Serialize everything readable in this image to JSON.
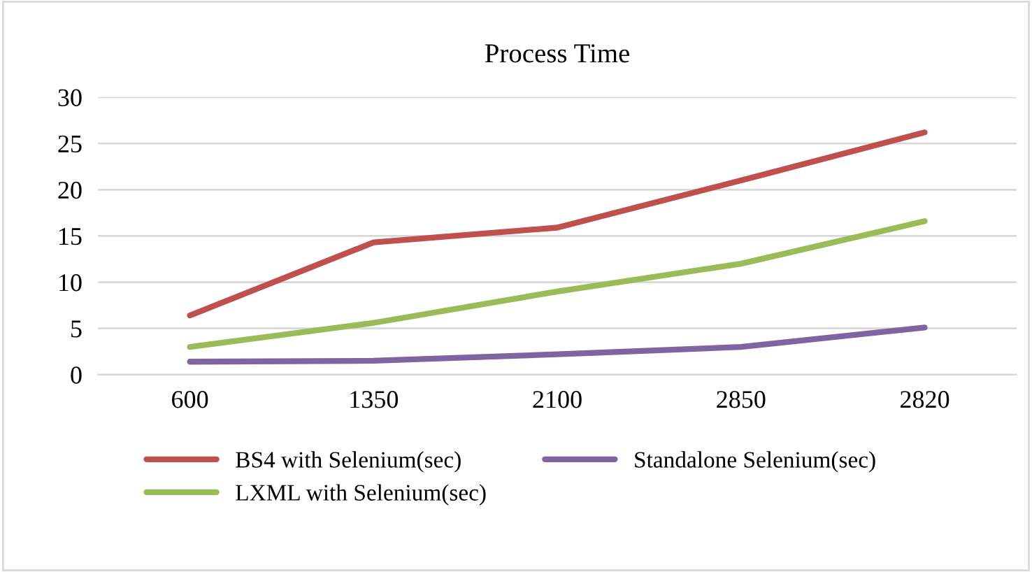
{
  "chart_data": {
    "type": "line",
    "title": "Process Time",
    "categories": [
      "600",
      "1350",
      "2100",
      "2850",
      "2820"
    ],
    "series": [
      {
        "name": "BS4 with Selenium(sec)",
        "color": "#c0504d",
        "values": [
          6.4,
          14.3,
          15.9,
          21,
          26.2
        ]
      },
      {
        "name": "LXML with Selenium(sec)",
        "color": "#9bbb59",
        "values": [
          3,
          5.6,
          9,
          12,
          16.6
        ]
      },
      {
        "name": "Standalone Selenium(sec)",
        "color": "#8064a2",
        "values": [
          1.4,
          1.5,
          2.2,
          3,
          5.1
        ]
      }
    ],
    "ylim": [
      0,
      30
    ],
    "yticks": [
      0,
      5,
      10,
      15,
      20,
      25,
      30
    ],
    "grid": "y",
    "legend": "bottom",
    "marker": "none",
    "line_style": "solid"
  }
}
